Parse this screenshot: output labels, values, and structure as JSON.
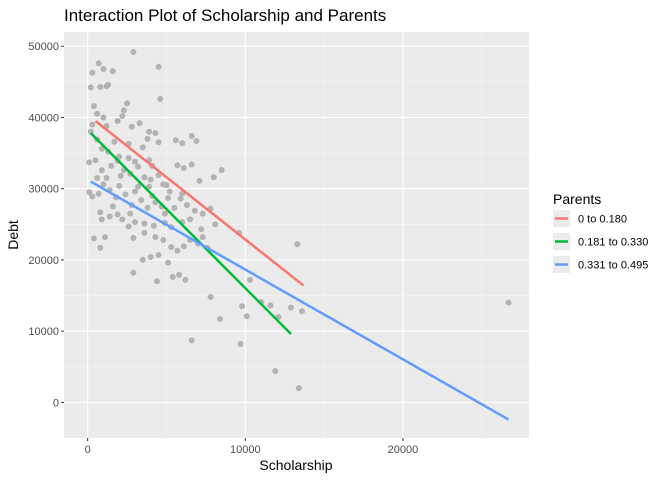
{
  "chart_data": {
    "type": "scatter",
    "title": "Interaction Plot of Scholarship and Parents",
    "xlabel": "Scholarship",
    "ylabel": "Debt",
    "xlim": [
      -1500,
      28000
    ],
    "ylim": [
      -5000,
      52000
    ],
    "x_ticks": [
      0,
      10000,
      20000
    ],
    "x_tick_labels": [
      "0",
      "10000",
      "20000"
    ],
    "y_ticks": [
      0,
      10000,
      20000,
      30000,
      40000,
      50000
    ],
    "y_tick_labels": [
      "0",
      "10000",
      "20000",
      "30000",
      "40000",
      "50000"
    ],
    "grid": true,
    "legend": {
      "title": "Parents",
      "placement": "right",
      "entries": [
        "0 to 0.180",
        "0.181 to 0.330",
        "0.331 to 0.495"
      ]
    },
    "points_color": "#b3b3b3",
    "points": [
      [
        200,
        44200
      ],
      [
        300,
        46300
      ],
      [
        700,
        47600
      ],
      [
        1000,
        46800
      ],
      [
        1200,
        44400
      ],
      [
        1600,
        46500
      ],
      [
        2900,
        49200
      ],
      [
        4500,
        47100
      ],
      [
        400,
        41600
      ],
      [
        800,
        44300
      ],
      [
        1300,
        44600
      ],
      [
        2300,
        41000
      ],
      [
        2500,
        42000
      ],
      [
        4600,
        42600
      ],
      [
        300,
        39000
      ],
      [
        600,
        40500
      ],
      [
        1000,
        40000
      ],
      [
        1200,
        38800
      ],
      [
        1900,
        39500
      ],
      [
        2200,
        40200
      ],
      [
        2800,
        38700
      ],
      [
        3300,
        39200
      ],
      [
        3900,
        38000
      ],
      [
        4300,
        37800
      ],
      [
        4500,
        36500
      ],
      [
        5600,
        36800
      ],
      [
        6000,
        36400
      ],
      [
        6600,
        37400
      ],
      [
        6900,
        36700
      ],
      [
        200,
        38000
      ],
      [
        600,
        36900
      ],
      [
        900,
        35600
      ],
      [
        1300,
        35200
      ],
      [
        1700,
        36600
      ],
      [
        2000,
        34500
      ],
      [
        2600,
        34300
      ],
      [
        3000,
        33800
      ],
      [
        3500,
        35800
      ],
      [
        3900,
        34000
      ],
      [
        4100,
        33200
      ],
      [
        100,
        33700
      ],
      [
        500,
        34000
      ],
      [
        900,
        32600
      ],
      [
        1200,
        31500
      ],
      [
        1500,
        33200
      ],
      [
        1900,
        33900
      ],
      [
        2300,
        32600
      ],
      [
        2700,
        32100
      ],
      [
        3200,
        33100
      ],
      [
        3600,
        31600
      ],
      [
        3900,
        30300
      ],
      [
        4500,
        31900
      ],
      [
        4800,
        30600
      ],
      [
        5200,
        29600
      ],
      [
        5700,
        33300
      ],
      [
        6100,
        32900
      ],
      [
        6600,
        33400
      ],
      [
        7100,
        31100
      ],
      [
        8000,
        31600
      ],
      [
        8500,
        32600
      ],
      [
        100,
        29500
      ],
      [
        300,
        28900
      ],
      [
        700,
        29300
      ],
      [
        1000,
        30600
      ],
      [
        1400,
        29800
      ],
      [
        1800,
        28800
      ],
      [
        2000,
        30400
      ],
      [
        2400,
        29200
      ],
      [
        2800,
        27700
      ],
      [
        3000,
        29600
      ],
      [
        3400,
        28400
      ],
      [
        3800,
        27300
      ],
      [
        4100,
        29000
      ],
      [
        4300,
        28100
      ],
      [
        4700,
        27500
      ],
      [
        5100,
        28700
      ],
      [
        5500,
        27300
      ],
      [
        5900,
        28600
      ],
      [
        6300,
        27700
      ],
      [
        6800,
        26900
      ],
      [
        7300,
        26500
      ],
      [
        7800,
        27200
      ],
      [
        800,
        26700
      ],
      [
        900,
        25700
      ],
      [
        1400,
        26100
      ],
      [
        1900,
        26400
      ],
      [
        2200,
        25700
      ],
      [
        2600,
        24700
      ],
      [
        3000,
        25300
      ],
      [
        3600,
        25100
      ],
      [
        4200,
        24800
      ],
      [
        4900,
        25200
      ],
      [
        5300,
        24600
      ],
      [
        6000,
        25300
      ],
      [
        6500,
        25700
      ],
      [
        7200,
        24300
      ],
      [
        8100,
        25000
      ],
      [
        2900,
        23100
      ],
      [
        3600,
        23800
      ],
      [
        4300,
        23200
      ],
      [
        4800,
        22800
      ],
      [
        5300,
        21800
      ],
      [
        5700,
        21300
      ],
      [
        6100,
        21900
      ],
      [
        6500,
        22800
      ],
      [
        7000,
        22300
      ],
      [
        7600,
        21700
      ],
      [
        400,
        23000
      ],
      [
        800,
        21700
      ],
      [
        1100,
        23200
      ],
      [
        4000,
        20400
      ],
      [
        4500,
        20700
      ],
      [
        5100,
        19600
      ],
      [
        2900,
        18200
      ],
      [
        3500,
        20000
      ],
      [
        4400,
        17000
      ],
      [
        5400,
        17600
      ],
      [
        5800,
        17900
      ],
      [
        6200,
        17200
      ],
      [
        9600,
        23800
      ],
      [
        7800,
        14800
      ],
      [
        8400,
        11700
      ],
      [
        9800,
        13500
      ],
      [
        10300,
        17200
      ],
      [
        11000,
        14100
      ],
      [
        10100,
        12100
      ],
      [
        11600,
        13600
      ],
      [
        12900,
        13300
      ],
      [
        12100,
        12000
      ],
      [
        13300,
        22200
      ],
      [
        13600,
        12800
      ],
      [
        6600,
        8700
      ],
      [
        9700,
        8200
      ],
      [
        11900,
        4400
      ],
      [
        13400,
        2000
      ],
      [
        26700,
        14000
      ],
      [
        2600,
        36300
      ],
      [
        3800,
        37000
      ],
      [
        5000,
        30500
      ],
      [
        2100,
        31800
      ],
      [
        1600,
        27500
      ],
      [
        4000,
        31300
      ],
      [
        3200,
        30300
      ],
      [
        600,
        31500
      ],
      [
        2700,
        26500
      ],
      [
        4900,
        26500
      ],
      [
        6000,
        29300
      ],
      [
        7300,
        23200
      ]
    ],
    "series": [
      {
        "name": "0 to 0.180",
        "color": "#f8766d",
        "x": [
          500,
          13700
        ],
        "y": [
          39500,
          16400
        ]
      },
      {
        "name": "0.181 to 0.330",
        "color": "#00ba38",
        "x": [
          200,
          12900
        ],
        "y": [
          37800,
          9600
        ]
      },
      {
        "name": "0.331 to 0.495",
        "color": "#619cff",
        "x": [
          200,
          26700
        ],
        "y": [
          31000,
          -2400
        ]
      }
    ]
  }
}
